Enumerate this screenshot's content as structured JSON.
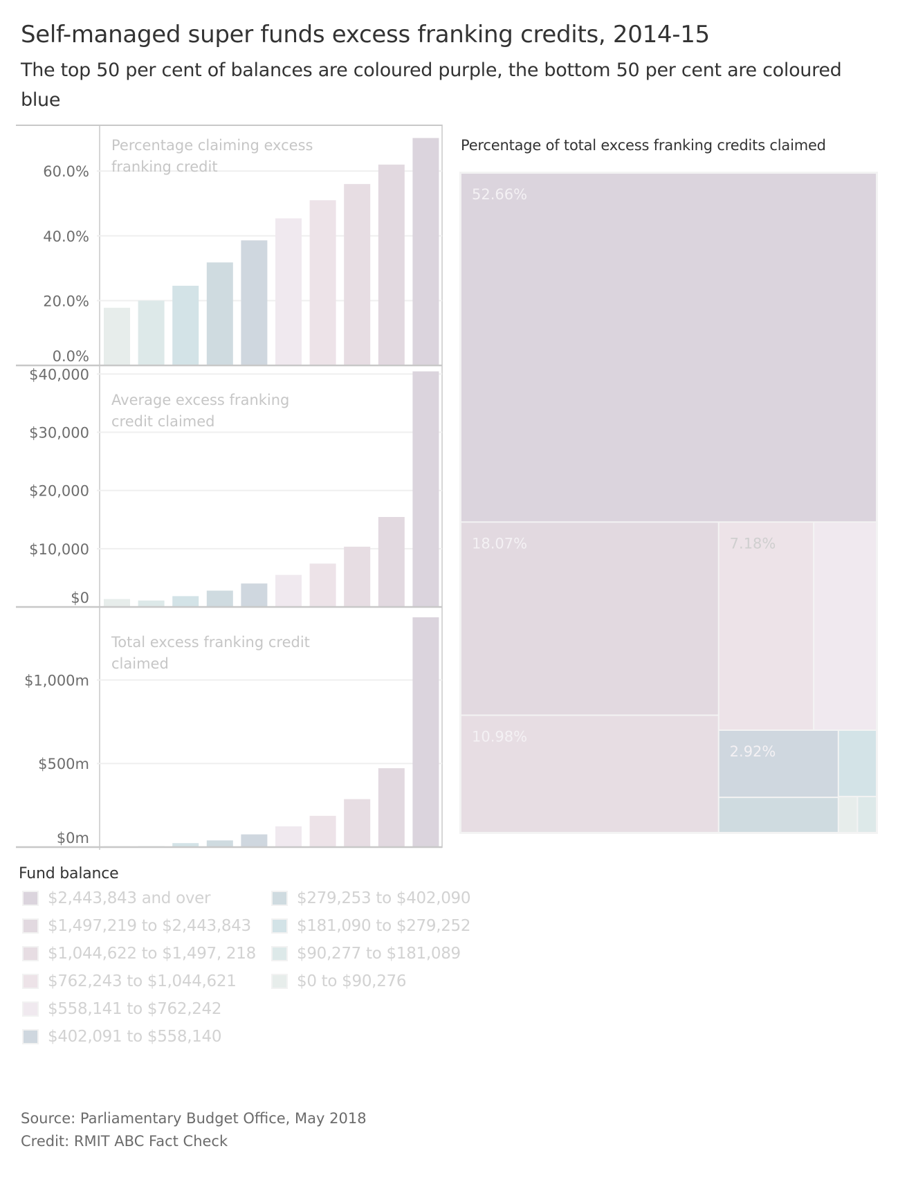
{
  "header": {
    "title": "Self-managed super funds excess franking credits, 2014-15",
    "subtitle": "The top 50 per cent of balances are coloured purple, the bottom 50 per cent are coloured blue"
  },
  "legend": {
    "title": "Fund balance",
    "items": [
      {
        "label": "$2,443,843 and over",
        "color": "#dbd4dd"
      },
      {
        "label": "$1,497,219 to $2,443,843",
        "color": "#e2d9e0"
      },
      {
        "label": "$1,044,622 to $1,497, 218",
        "color": "#e7dde3"
      },
      {
        "label": "$762,243 to $1,044,621",
        "color": "#ede3e8"
      },
      {
        "label": "$558,141 to $762,242",
        "color": "#f0e9ef"
      },
      {
        "label": "$402,091 to $558,140",
        "color": "#cfd7df"
      },
      {
        "label": "$279,253 to $402,090",
        "color": "#cfdbe0"
      },
      {
        "label": "$181,090 to $279,252",
        "color": "#d3e3e7"
      },
      {
        "label": "$90,277 to $181,089",
        "color": "#dde9e9"
      },
      {
        "label": "$0 to $90,276",
        "color": "#e7edeb"
      }
    ]
  },
  "footer": {
    "source": "Source: Parliamentary Budget Office, May 2018",
    "credit": "Credit: RMIT ABC Fact Check"
  },
  "chart_data": [
    {
      "type": "bar",
      "title": "Percentage claiming excess franking credit",
      "categories": [
        "$0 to $90,276",
        "$90,277 to $181,089",
        "$181,090 to $279,252",
        "$279,253 to $402,090",
        "$402,091 to $558,140",
        "$558,141 to $762,242",
        "$762,243 to $1,044,621",
        "$1,044,622 to $1,497, 218",
        "$1,497,219 to $2,443,843",
        "$2,443,843 and over"
      ],
      "values": [
        17.8,
        20.0,
        24.6,
        31.8,
        38.6,
        45.4,
        51.0,
        56.0,
        62.0,
        70.2
      ],
      "unit": "%",
      "ylim": [
        0,
        72
      ],
      "yticks": [
        0,
        20,
        40,
        60
      ],
      "ytick_labels": [
        "0.0%",
        "20.0%",
        "40.0%",
        "60.0%"
      ],
      "grid": true,
      "xlabel": "",
      "ylabel": ""
    },
    {
      "type": "bar",
      "title": "Average excess franking credit claimed",
      "categories": [
        "$0 to $90,276",
        "$90,277 to $181,089",
        "$181,090 to $279,252",
        "$279,253 to $402,090",
        "$402,091 to $558,140",
        "$558,141 to $762,242",
        "$762,243 to $1,044,621",
        "$1,044,622 to $1,497, 218",
        "$1,497,219 to $2,443,843",
        "$2,443,843 and over"
      ],
      "values": [
        1350,
        1100,
        1850,
        2800,
        4030,
        5500,
        7450,
        10350,
        15450,
        40450
      ],
      "unit": "$",
      "ylim": [
        0,
        41000
      ],
      "yticks": [
        0,
        10000,
        20000,
        30000,
        40000
      ],
      "ytick_labels": [
        "$0",
        "$10,000",
        "$20,000",
        "$30,000",
        "$40,000"
      ],
      "grid": true,
      "xlabel": "",
      "ylabel": ""
    },
    {
      "type": "bar",
      "title": "Total excess franking credit claimed",
      "categories": [
        "$0 to $90,276",
        "$90,277 to $181,089",
        "$181,090 to $279,252",
        "$279,253 to $402,090",
        "$402,091 to $558,140",
        "$558,141 to $762,242",
        "$762,243 to $1,044,621",
        "$1,044,622 to $1,497, 218",
        "$1,497,219 to $2,443,843",
        "$2,443,843 and over"
      ],
      "values": [
        6,
        6,
        24,
        40,
        76,
        124,
        187,
        287,
        472,
        1375
      ],
      "unit": "$m",
      "ylim": [
        0,
        1420
      ],
      "yticks": [
        0,
        500,
        1000
      ],
      "ytick_labels": [
        "$0m",
        "$500m",
        "$1,000m"
      ],
      "grid": true,
      "xlabel": "",
      "ylabel": ""
    },
    {
      "type": "treemap",
      "title": "Percentage of total excess franking credits claimed",
      "categories": [
        "$2,443,843 and over",
        "$1,497,219 to $2,443,843",
        "$1,044,622 to $1,497, 218",
        "$762,243 to $1,044,621",
        "$558,141 to $762,242",
        "$402,091 to $558,140",
        "$279,253 to $402,090",
        "$181,090 to $279,252",
        "$0 to $90,276",
        "$90,277 to $181,089"
      ],
      "values": [
        52.66,
        18.07,
        10.98,
        7.18,
        4.75,
        2.92,
        1.53,
        0.92,
        0.25,
        0.25
      ],
      "labels": [
        "52.66%",
        "18.07%",
        "10.98%",
        "7.18%",
        "",
        "2.92%",
        "",
        "",
        "",
        ""
      ]
    }
  ]
}
